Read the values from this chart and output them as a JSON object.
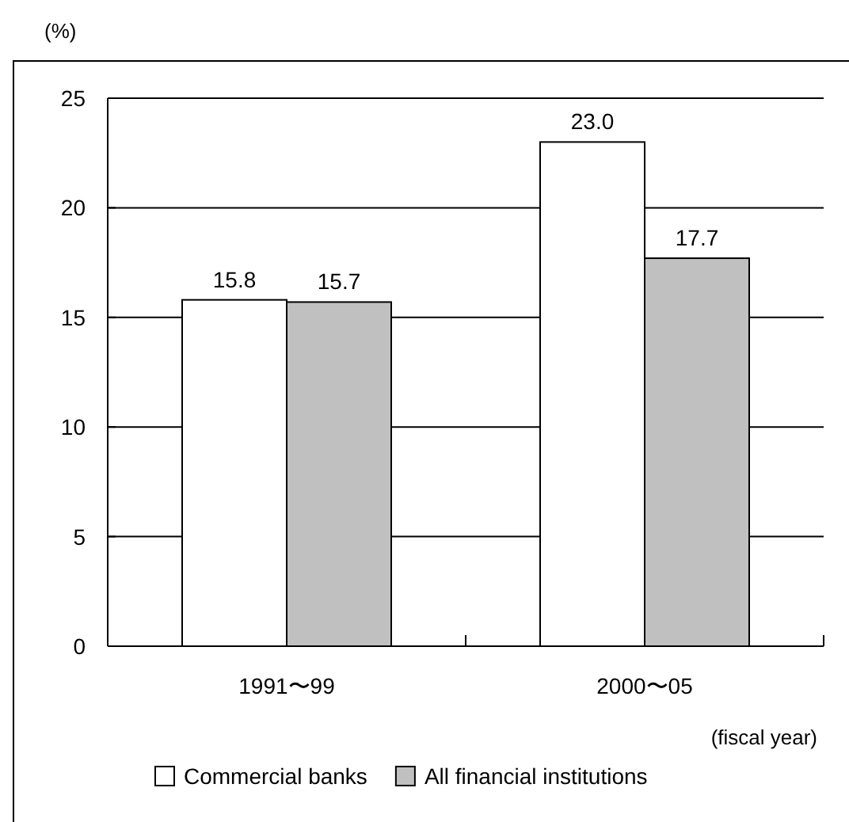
{
  "chart_data": {
    "type": "bar",
    "ylabel": "(%)",
    "xlabel": "(fiscal year)",
    "categories": [
      "1991〜99",
      "2000〜05"
    ],
    "series": [
      {
        "name": "Commercial banks",
        "color": "#ffffff",
        "values": [
          15.8,
          23.0
        ]
      },
      {
        "name": "All financial institutions",
        "color": "#c0c0c0",
        "values": [
          15.7,
          17.7
        ]
      }
    ],
    "value_labels": [
      [
        "15.8",
        "23.0"
      ],
      [
        "15.7",
        "17.7"
      ]
    ],
    "ylim": [
      0,
      25
    ],
    "yticks": [
      0,
      5,
      10,
      15,
      20,
      25
    ],
    "grid": "y",
    "legend": "bottom"
  }
}
